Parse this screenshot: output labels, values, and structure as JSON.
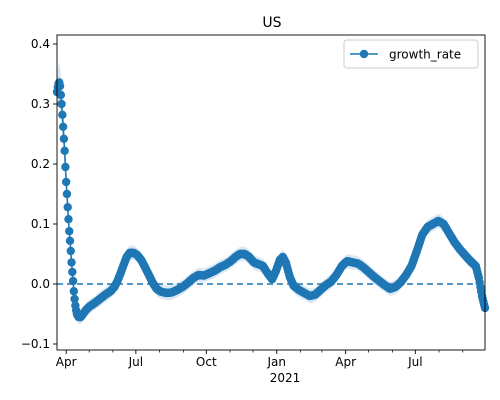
{
  "chart_data": {
    "type": "line",
    "title": "US",
    "xlabel": "",
    "ylabel": "",
    "x_start": "2020-03-20",
    "x_end": "2021-09-30",
    "ylim": [
      -0.11,
      0.415
    ],
    "y_ticks": [
      -0.1,
      0.0,
      0.1,
      0.2,
      0.3,
      0.4
    ],
    "y_tick_labels": [
      "−0.1",
      "0.0",
      "0.1",
      "0.2",
      "0.3",
      "0.4"
    ],
    "x_ticks": [
      "2020-04-01",
      "2020-07-01",
      "2020-10-01",
      "2021-01-01",
      "2021-04-01",
      "2021-07-01"
    ],
    "x_tick_labels": [
      "Apr",
      "Jul",
      "Oct",
      "Jan",
      "Apr",
      "Jul"
    ],
    "x_year_label": "2021",
    "x_minor_ticks": [
      "2020-05-01",
      "2020-06-01",
      "2020-08-01",
      "2020-09-01",
      "2020-11-01",
      "2020-12-01",
      "2021-02-01",
      "2021-03-01",
      "2021-05-01",
      "2021-06-01",
      "2021-08-01",
      "2021-09-01"
    ],
    "reference_line": {
      "y": 0.0,
      "style": "dashed"
    },
    "grid": false,
    "legend": {
      "position": "top-right",
      "entries": [
        "growth_rate"
      ]
    },
    "series": [
      {
        "name": "growth_rate",
        "color": "#1f77b4",
        "band_color": "#dae8f5",
        "band_halfwidth": 0.012,
        "points": [
          [
            "2020-03-20",
            0.32
          ],
          [
            "2020-03-21",
            0.328
          ],
          [
            "2020-03-22",
            0.334
          ],
          [
            "2020-03-23",
            0.336
          ],
          [
            "2020-03-24",
            0.33
          ],
          [
            "2020-03-25",
            0.315
          ],
          [
            "2020-03-26",
            0.3
          ],
          [
            "2020-03-27",
            0.282
          ],
          [
            "2020-03-28",
            0.262
          ],
          [
            "2020-03-29",
            0.242
          ],
          [
            "2020-03-30",
            0.222
          ],
          [
            "2020-03-31",
            0.195
          ],
          [
            "2020-04-01",
            0.17
          ],
          [
            "2020-04-02",
            0.15
          ],
          [
            "2020-04-03",
            0.128
          ],
          [
            "2020-04-04",
            0.108
          ],
          [
            "2020-04-05",
            0.088
          ],
          [
            "2020-04-06",
            0.072
          ],
          [
            "2020-04-07",
            0.055
          ],
          [
            "2020-04-08",
            0.036
          ],
          [
            "2020-04-09",
            0.02
          ],
          [
            "2020-04-10",
            0.005
          ],
          [
            "2020-04-11",
            -0.012
          ],
          [
            "2020-04-12",
            -0.025
          ],
          [
            "2020-04-13",
            -0.036
          ],
          [
            "2020-04-14",
            -0.044
          ],
          [
            "2020-04-15",
            -0.05
          ],
          [
            "2020-04-17",
            -0.055
          ],
          [
            "2020-04-20",
            -0.055
          ],
          [
            "2020-04-23",
            -0.05
          ],
          [
            "2020-04-27",
            -0.043
          ],
          [
            "2020-05-01",
            -0.038
          ],
          [
            "2020-05-08",
            -0.032
          ],
          [
            "2020-05-15",
            -0.025
          ],
          [
            "2020-05-22",
            -0.018
          ],
          [
            "2020-05-29",
            -0.012
          ],
          [
            "2020-06-03",
            -0.005
          ],
          [
            "2020-06-07",
            0.005
          ],
          [
            "2020-06-11",
            0.018
          ],
          [
            "2020-06-15",
            0.032
          ],
          [
            "2020-06-19",
            0.045
          ],
          [
            "2020-06-23",
            0.052
          ],
          [
            "2020-06-28",
            0.052
          ],
          [
            "2020-07-03",
            0.048
          ],
          [
            "2020-07-08",
            0.04
          ],
          [
            "2020-07-13",
            0.028
          ],
          [
            "2020-07-18",
            0.015
          ],
          [
            "2020-07-23",
            0.002
          ],
          [
            "2020-07-28",
            -0.008
          ],
          [
            "2020-08-03",
            -0.013
          ],
          [
            "2020-08-10",
            -0.015
          ],
          [
            "2020-08-17",
            -0.014
          ],
          [
            "2020-08-24",
            -0.01
          ],
          [
            "2020-08-31",
            -0.005
          ],
          [
            "2020-09-07",
            0.002
          ],
          [
            "2020-09-14",
            0.01
          ],
          [
            "2020-09-21",
            0.015
          ],
          [
            "2020-09-28",
            0.014
          ],
          [
            "2020-10-05",
            0.018
          ],
          [
            "2020-10-12",
            0.022
          ],
          [
            "2020-10-19",
            0.028
          ],
          [
            "2020-10-26",
            0.032
          ],
          [
            "2020-11-02",
            0.038
          ],
          [
            "2020-11-08",
            0.045
          ],
          [
            "2020-11-14",
            0.05
          ],
          [
            "2020-11-20",
            0.05
          ],
          [
            "2020-11-26",
            0.045
          ],
          [
            "2020-12-02",
            0.036
          ],
          [
            "2020-12-08",
            0.033
          ],
          [
            "2020-12-14",
            0.03
          ],
          [
            "2020-12-20",
            0.018
          ],
          [
            "2020-12-26",
            0.008
          ],
          [
            "2020-12-31",
            0.022
          ],
          [
            "2021-01-05",
            0.04
          ],
          [
            "2021-01-09",
            0.045
          ],
          [
            "2021-01-13",
            0.035
          ],
          [
            "2021-01-18",
            0.012
          ],
          [
            "2021-01-23",
            -0.003
          ],
          [
            "2021-01-30",
            -0.01
          ],
          [
            "2021-02-06",
            -0.015
          ],
          [
            "2021-02-13",
            -0.02
          ],
          [
            "2021-02-20",
            -0.018
          ],
          [
            "2021-02-27",
            -0.01
          ],
          [
            "2021-03-06",
            -0.002
          ],
          [
            "2021-03-13",
            0.004
          ],
          [
            "2021-03-20",
            0.015
          ],
          [
            "2021-03-27",
            0.03
          ],
          [
            "2021-04-03",
            0.038
          ],
          [
            "2021-04-10",
            0.036
          ],
          [
            "2021-04-17",
            0.034
          ],
          [
            "2021-04-24",
            0.028
          ],
          [
            "2021-05-01",
            0.02
          ],
          [
            "2021-05-08",
            0.012
          ],
          [
            "2021-05-15",
            0.005
          ],
          [
            "2021-05-22",
            -0.002
          ],
          [
            "2021-05-29",
            -0.008
          ],
          [
            "2021-06-05",
            -0.005
          ],
          [
            "2021-06-12",
            0.003
          ],
          [
            "2021-06-19",
            0.015
          ],
          [
            "2021-06-26",
            0.03
          ],
          [
            "2021-07-03",
            0.055
          ],
          [
            "2021-07-10",
            0.082
          ],
          [
            "2021-07-17",
            0.095
          ],
          [
            "2021-07-24",
            0.1
          ],
          [
            "2021-07-31",
            0.105
          ],
          [
            "2021-08-07",
            0.1
          ],
          [
            "2021-08-14",
            0.085
          ],
          [
            "2021-08-21",
            0.07
          ],
          [
            "2021-08-28",
            0.058
          ],
          [
            "2021-09-04",
            0.048
          ],
          [
            "2021-09-11",
            0.038
          ],
          [
            "2021-09-18",
            0.03
          ],
          [
            "2021-09-22",
            0.01
          ],
          [
            "2021-09-26",
            -0.02
          ],
          [
            "2021-09-30",
            -0.04
          ]
        ]
      }
    ]
  }
}
